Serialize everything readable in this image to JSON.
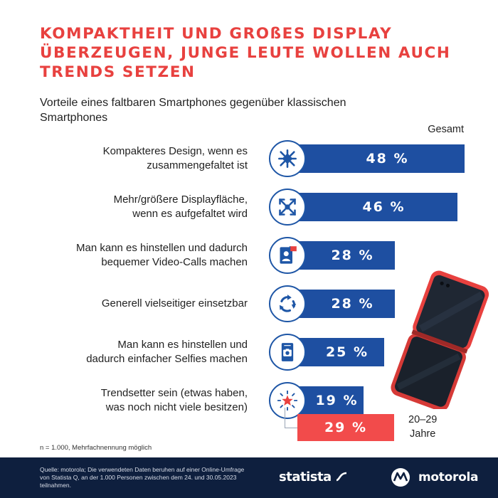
{
  "title": "KOMPAKTHEIT UND GROßES DISPLAY ÜBERZEUGEN, JUNGE LEUTE WOLLEN AUCH TRENDS SETZEN",
  "subtitle": "Vorteile eines faltbaren Smartphones gegenüber klassischen Smartphones",
  "column_label": "Gesamt",
  "chart_data": {
    "type": "bar",
    "orientation": "horizontal",
    "title": "Vorteile eines faltbaren Smartphones gegenüber klassischen Smartphones",
    "categories": [
      "Kompakteres Design, wenn es zusammengefaltet ist",
      "Mehr/größere Displayfläche, wenn es aufgefaltet wird",
      "Man kann es hinstellen und dadurch bequemer Video-Calls machen",
      "Generell vielseitiger einsetzbar",
      "Man kann es hinstellen und dadurch einfacher Selfies machen",
      "Trendsetter sein (etwas haben, was noch nicht viele besitzen)"
    ],
    "series": [
      {
        "name": "Gesamt",
        "values": [
          48,
          46,
          28,
          28,
          25,
          19
        ]
      },
      {
        "name": "20–29 Jahre",
        "values": [
          null,
          null,
          null,
          null,
          null,
          29
        ]
      }
    ],
    "value_labels": [
      "48 %",
      "46 %",
      "28 %",
      "28 %",
      "25 %",
      "19 %"
    ],
    "highlight_label": "29 %",
    "unit": "%",
    "xlim": [
      0,
      48
    ],
    "colors": {
      "gesamt": "#1e4fa1",
      "young": "#f24b4b"
    }
  },
  "rows": [
    {
      "label1": "Kompakteres Design, wenn es",
      "label2": "zusammengefaltet ist",
      "icon": "compress-arrows-icon"
    },
    {
      "label1": "Mehr/größere Displayfläche,",
      "label2": "wenn es aufgefaltet wird",
      "icon": "expand-arrows-icon"
    },
    {
      "label1": "Man kann es hinstellen und dadurch",
      "label2": "bequemer Video-Calls machen",
      "icon": "video-call-icon"
    },
    {
      "label1": "Generell vielseitiger einsetzbar",
      "label2": "",
      "icon": "rotate-arrows-icon"
    },
    {
      "label1": "Man kann es hinstellen und",
      "label2": "dadurch einfacher Selfies machen",
      "icon": "selfie-camera-icon"
    },
    {
      "label1": "Trendsetter sein (etwas haben,",
      "label2": "was noch nicht viele besitzen)",
      "icon": "star-burst-icon"
    }
  ],
  "age_group": {
    "line1": "20–29",
    "line2": "Jahre"
  },
  "note": "n = 1.000, Mehrfachnennung möglich",
  "source": "Quelle: motorola; Die verwendeten Daten beruhen auf einer Online-Umfrage von Statista Q, an der 1.000 Personen zwischen dem 24. und 30.05.2023 teilnahmen.",
  "brand1": "statista",
  "brand2": "motorola",
  "colors": {
    "accent": "#e8413f",
    "blue": "#1e4fa1",
    "footer": "#0e1f3e"
  }
}
